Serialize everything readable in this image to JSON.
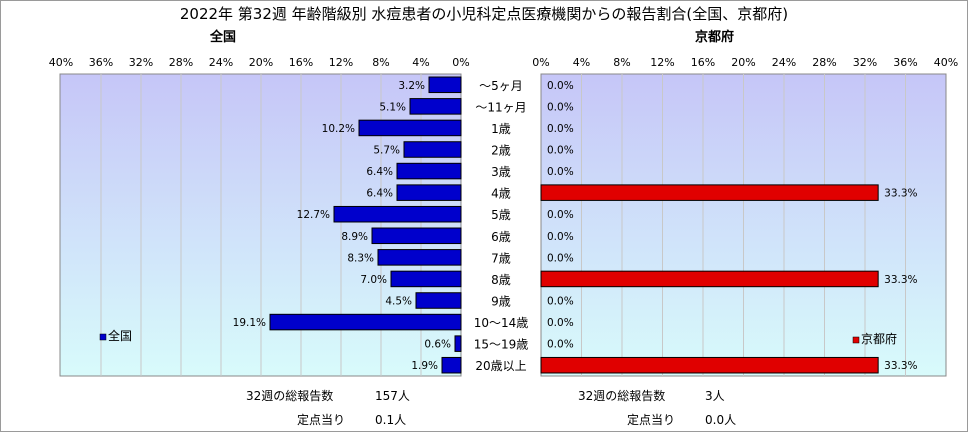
{
  "title": "2022年 第32週 年齢階級別 水痘患者の小児科定点医療機関からの報告割合(全国、京都府)",
  "left_panel_title": "全国",
  "right_panel_title": "京都府",
  "colors": {
    "national_bar": "#0000cc",
    "kyoto_bar": "#e00000",
    "plot_bg_top": "#c6c6f8",
    "plot_bg_bottom": "#d8fbfb",
    "grid": "#c8c8c8"
  },
  "chart_data": [
    {
      "type": "bar",
      "orientation": "horizontal",
      "direction": "right-to-left",
      "categories": [
        "～5ヶ月",
        "～11ヶ月",
        "1歳",
        "2歳",
        "3歳",
        "4歳",
        "5歳",
        "6歳",
        "7歳",
        "8歳",
        "9歳",
        "10～14歳",
        "15～19歳",
        "20歳以上"
      ],
      "series": [
        {
          "name": "全国",
          "values": [
            3.2,
            5.1,
            10.2,
            5.7,
            6.4,
            6.4,
            12.7,
            8.9,
            8.3,
            7.0,
            4.5,
            19.1,
            0.6,
            1.9
          ]
        }
      ],
      "value_labels": [
        "3.2%",
        "5.1%",
        "10.2%",
        "5.7%",
        "6.4%",
        "6.4%",
        "12.7%",
        "8.9%",
        "8.3%",
        "7.0%",
        "4.5%",
        "19.1%",
        "0.6%",
        "1.9%"
      ],
      "xlim": [
        0,
        40
      ],
      "xticks": [
        "0%",
        "4%",
        "8%",
        "12%",
        "16%",
        "20%",
        "24%",
        "28%",
        "32%",
        "36%",
        "40%"
      ],
      "legend": "bottom-left",
      "grid": true
    },
    {
      "type": "bar",
      "orientation": "horizontal",
      "direction": "left-to-right",
      "categories": [
        "～5ヶ月",
        "～11ヶ月",
        "1歳",
        "2歳",
        "3歳",
        "4歳",
        "5歳",
        "6歳",
        "7歳",
        "8歳",
        "9歳",
        "10～14歳",
        "15～19歳",
        "20歳以上"
      ],
      "series": [
        {
          "name": "京都府",
          "values": [
            0,
            0,
            0,
            0,
            0,
            33.3,
            0,
            0,
            0,
            33.3,
            0,
            0,
            0,
            33.3
          ]
        }
      ],
      "value_labels": [
        "0.0%",
        "0.0%",
        "0.0%",
        "0.0%",
        "0.0%",
        "33.3%",
        "0.0%",
        "0.0%",
        "0.0%",
        "33.3%",
        "0.0%",
        "0.0%",
        "0.0%",
        "33.3%"
      ],
      "xlim": [
        0,
        40
      ],
      "xticks": [
        "0%",
        "4%",
        "8%",
        "12%",
        "16%",
        "20%",
        "24%",
        "28%",
        "32%",
        "36%",
        "40%"
      ],
      "legend": "bottom-right",
      "grid": true
    }
  ],
  "footer": {
    "national_total_label": "32週の総報告数",
    "national_total_value": "157人",
    "national_per_site_label": "定点当り",
    "national_per_site_value": "0.1人",
    "kyoto_total_label": "32週の総報告数",
    "kyoto_total_value": "3人",
    "kyoto_per_site_label": "定点当り",
    "kyoto_per_site_value": "0.0人"
  }
}
